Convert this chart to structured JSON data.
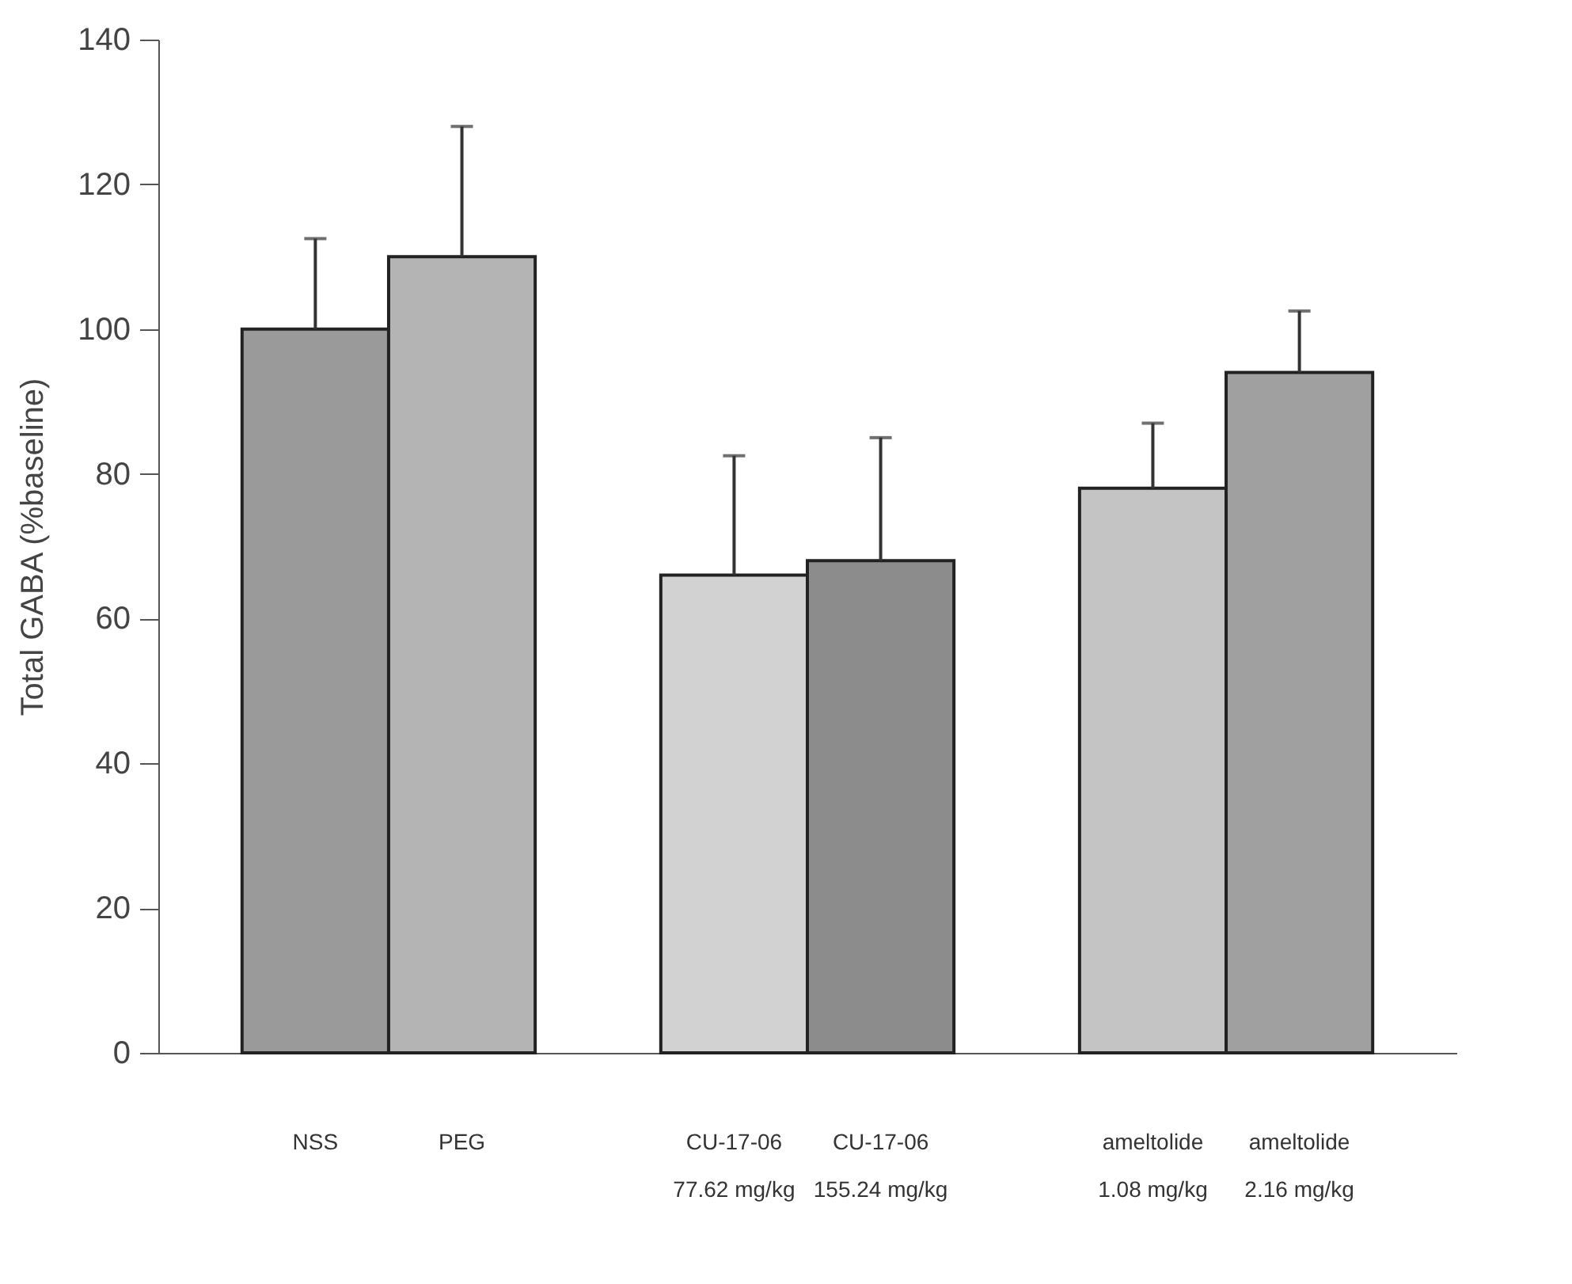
{
  "chart_data": {
    "type": "bar",
    "ylabel": "Total GABA (%baseline)",
    "categories": [
      "NSS",
      "PEG",
      "CU-17-06\n77.62 mg/kg",
      "CU-17-06\n155.24 mg/kg",
      "ameltolide\n1.08 mg/kg",
      "ameltolide\n2.16 mg/kg"
    ],
    "values": [
      100,
      110,
      66,
      68,
      78,
      94
    ],
    "errors": [
      [
        100,
        112.5
      ],
      [
        110,
        128
      ],
      [
        66,
        82.5
      ],
      [
        68,
        85
      ],
      [
        78,
        87
      ],
      [
        94,
        102.5
      ]
    ],
    "colors": [
      "#9a9a9a",
      "#b4b4b4",
      "#d2d2d2",
      "#8c8c8c",
      "#c4c4c4",
      "#a0a0a0"
    ],
    "ylim": [
      0,
      140
    ],
    "yticks": [
      0,
      20,
      40,
      60,
      80,
      100,
      120,
      140
    ],
    "grid": false,
    "legend": false
  }
}
